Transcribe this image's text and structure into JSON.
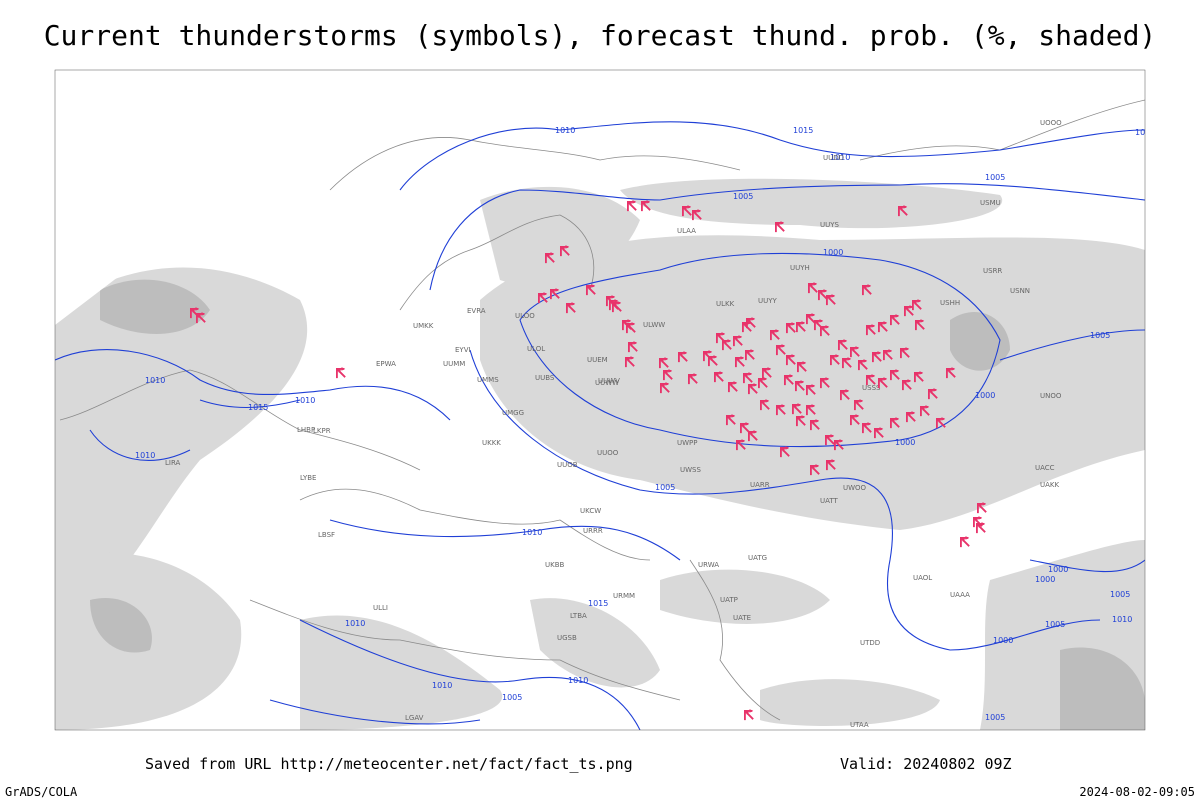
{
  "header": {
    "title": "Current thunderstorms (symbols), forecast thund. prob. (%, shaded)"
  },
  "isobar_labels": [
    "1010",
    "1015",
    "1010",
    "1005",
    "1000",
    "1015",
    "1010",
    "1010",
    "1015",
    "1010",
    "1000",
    "1005",
    "1000",
    "1005",
    "1010",
    "1015",
    "1010",
    "1010",
    "1005",
    "1000",
    "1000",
    "1005",
    "1005",
    "1005",
    "1000",
    "1005",
    "1010",
    "1010"
  ],
  "stations": [
    "ULAA",
    "UUYS",
    "UUYH",
    "UUYY",
    "ULKK",
    "ULWW",
    "ULOL",
    "UUEM",
    "UUWW",
    "UUMM",
    "UMMS",
    "UMGG",
    "UKKK",
    "UUOO",
    "UUOB",
    "UWPP",
    "UWSS",
    "UARR",
    "UATT",
    "UWOO",
    "USSS",
    "USHH",
    "USRR",
    "USNN",
    "UNOO",
    "UACC",
    "UAKK",
    "UATG",
    "UATP",
    "UATE",
    "URWA",
    "URMM",
    "URRR",
    "UKCW",
    "UKBB",
    "ULLI",
    "EVRA",
    "EYVI",
    "UMKK",
    "EPWA",
    "LKPR",
    "LHBP",
    "LIRA",
    "LYBE",
    "LBSF",
    "LGAV",
    "UGSB",
    "LTBA",
    "UTDD",
    "UTAA",
    "UAOL",
    "UAAA",
    "USMU",
    "UOOO",
    "UUDD",
    "ULOO",
    "UUBS",
    "UUWV"
  ],
  "footer": {
    "saved": "Saved from URL http://meteocenter.net/fact/fact_ts.png",
    "valid": "Valid: 20240802 09Z",
    "left": "GrADS/COLA",
    "right": "2024-08-02-09:05"
  }
}
